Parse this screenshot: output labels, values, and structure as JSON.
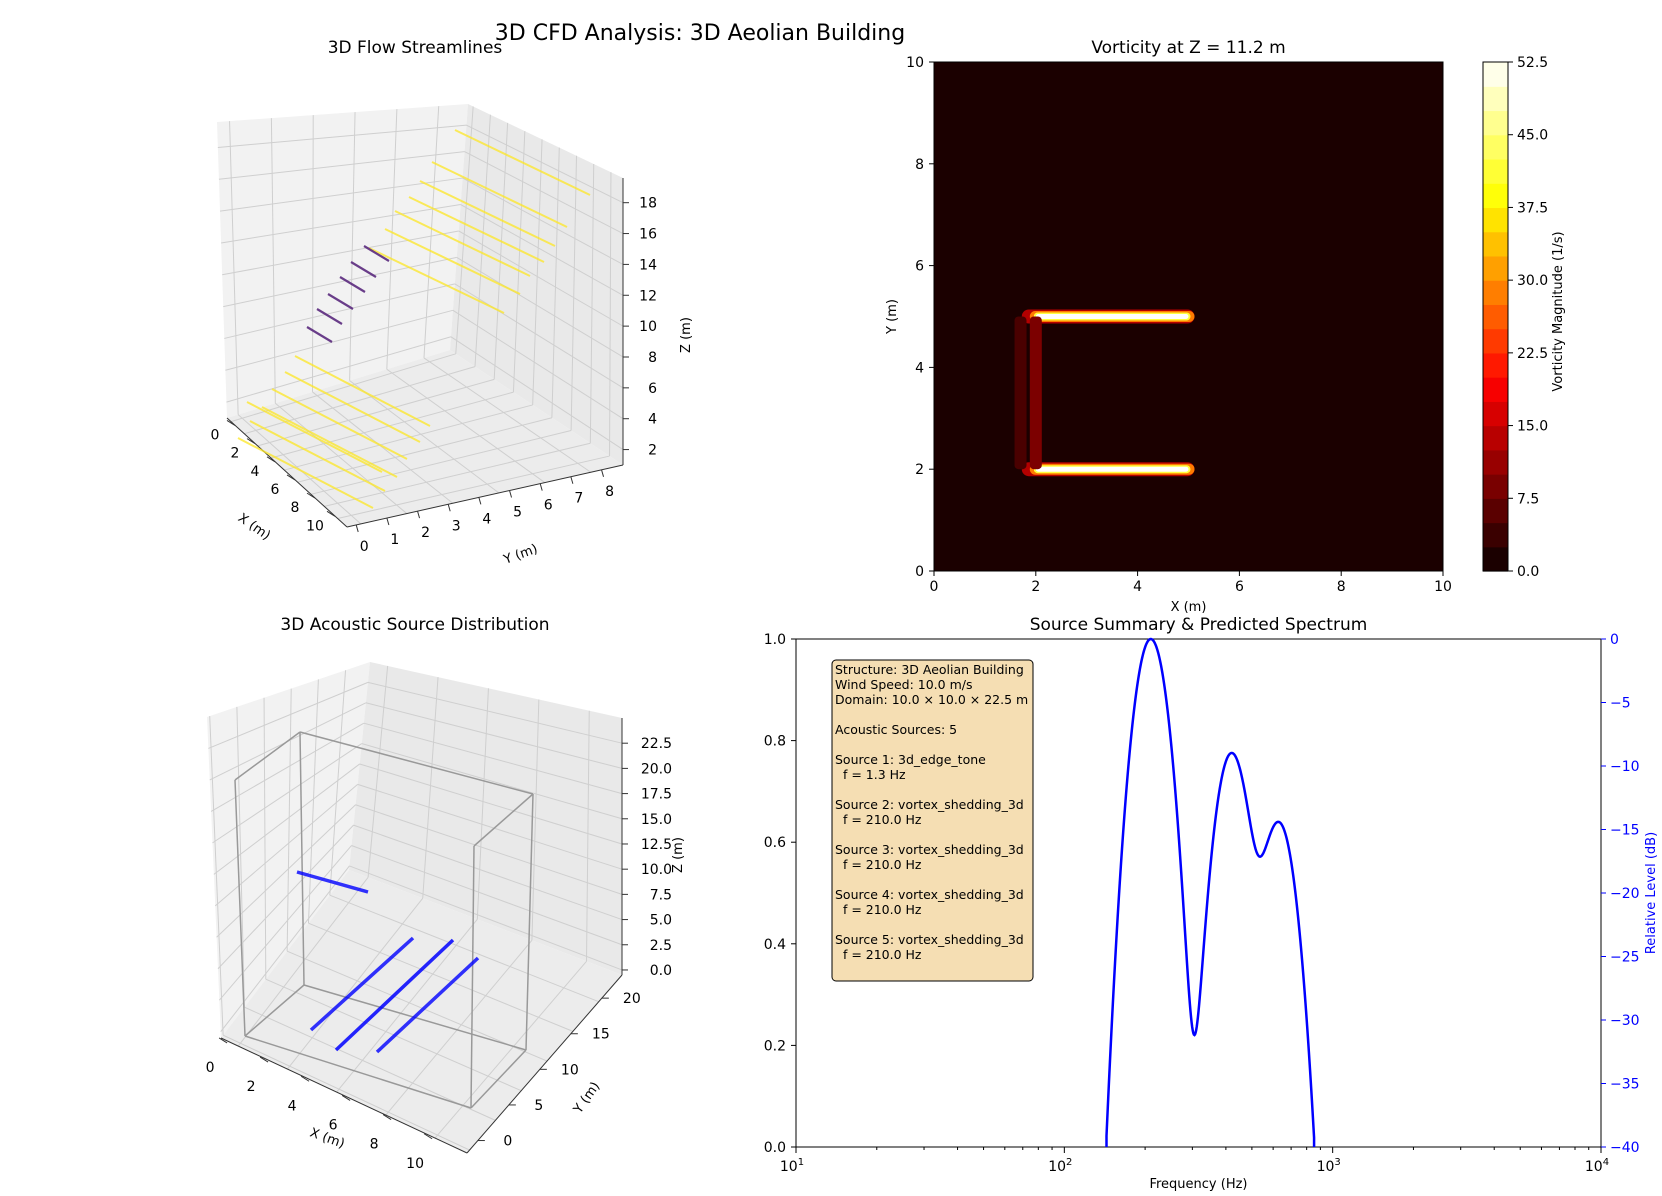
{
  "figure": {
    "title": "3D CFD Analysis: 3D Aeolian Building"
  },
  "chart_data": [
    {
      "id": "streamlines",
      "type": "line",
      "title": "3D Flow Streamlines",
      "xlabel": "X (m)",
      "ylabel": "Y (m)",
      "zlabel": "Z (m)",
      "xticks": [
        "0",
        "2",
        "4",
        "6",
        "8",
        "10"
      ],
      "yticks": [
        "0",
        "1",
        "2",
        "3",
        "4",
        "5",
        "6",
        "7",
        "8"
      ],
      "zticks": [
        "2",
        "4",
        "6",
        "8",
        "10",
        "12",
        "14",
        "16",
        "18"
      ],
      "series": [
        {
          "color": "#fde725",
          "segments": 14
        },
        {
          "color": "#5b2a7e",
          "segments": 6
        }
      ]
    },
    {
      "id": "vorticity",
      "type": "heatmap",
      "title": "Vorticity at Z = 11.2 m",
      "xlabel": "X (m)",
      "ylabel": "Y (m)",
      "xlim": [
        0,
        10
      ],
      "ylim": [
        0,
        10
      ],
      "xticks": [
        "0",
        "2",
        "4",
        "6",
        "8",
        "10"
      ],
      "yticks": [
        "0",
        "2",
        "4",
        "6",
        "8",
        "10"
      ],
      "colorbar": {
        "label": "Vorticity Magnitude (1/s)",
        "min": 0,
        "max": 52.5,
        "levels": 21,
        "ticks": [
          "0.0",
          "7.5",
          "15.0",
          "22.5",
          "30.0",
          "37.5",
          "45.0",
          "52.5"
        ]
      },
      "features": [
        {
          "kind": "bar",
          "x0": 2.0,
          "x1": 5.0,
          "y": 5.0,
          "value": 52.5
        },
        {
          "kind": "bar",
          "x0": 2.0,
          "x1": 5.0,
          "y": 2.0,
          "value": 52.5
        },
        {
          "kind": "wall",
          "x": 1.7,
          "y0": 2.0,
          "y1": 5.0,
          "value": 5.0
        },
        {
          "kind": "wall",
          "x": 2.0,
          "y0": 2.0,
          "y1": 5.0,
          "value": 9.0
        }
      ]
    },
    {
      "id": "acoustic",
      "type": "line",
      "title": "3D Acoustic Source Distribution",
      "xlabel": "X (m)",
      "ylabel": "Y (m)",
      "zlabel": "Z (m)",
      "xticks": [
        "0",
        "2",
        "4",
        "6",
        "8",
        "10"
      ],
      "yticks": [
        "0",
        "5",
        "10",
        "15",
        "20"
      ],
      "zticks": [
        "0.0",
        "2.5",
        "5.0",
        "7.5",
        "10.0",
        "12.5",
        "15.0",
        "17.5",
        "20.0",
        "22.5"
      ],
      "color": "#0000ff"
    },
    {
      "id": "spectrum",
      "type": "line",
      "title": "Source Summary & Predicted Spectrum",
      "xlabel": "Frequency (Hz)",
      "y2label": "Relative Level (dB)",
      "xscale": "log",
      "xlim": [
        10,
        10000
      ],
      "ylim": [
        0,
        1
      ],
      "y2lim": [
        -40,
        0
      ],
      "yticks": [
        "0.0",
        "0.2",
        "0.4",
        "0.6",
        "0.8",
        "1.0"
      ],
      "y2ticks": [
        "0",
        "−5",
        "−10",
        "−15",
        "−20",
        "−25",
        "−30",
        "−35",
        "−40"
      ],
      "xticks": [
        {
          "base": "10",
          "exp": "1"
        },
        {
          "base": "10",
          "exp": "2"
        },
        {
          "base": "10",
          "exp": "3"
        },
        {
          "base": "10",
          "exp": "4"
        }
      ],
      "peaks_hz": [
        210,
        420,
        630
      ],
      "peaks_db": [
        0,
        -9,
        -14.5
      ],
      "color": "#0000ff",
      "summary": [
        "Structure: 3D Aeolian Building",
        "Wind Speed: 10.0 m/s",
        "Domain: 10.0 × 10.0 × 22.5 m",
        "",
        "Acoustic Sources: 5",
        "",
        "Source 1: 3d_edge_tone",
        "  f = 1.3 Hz",
        "",
        "Source 2: vortex_shedding_3d",
        "  f = 210.0 Hz",
        "",
        "Source 3: vortex_shedding_3d",
        "  f = 210.0 Hz",
        "",
        "Source 4: vortex_shedding_3d",
        "  f = 210.0 Hz",
        "",
        "Source 5: vortex_shedding_3d",
        "  f = 210.0 Hz"
      ]
    }
  ]
}
